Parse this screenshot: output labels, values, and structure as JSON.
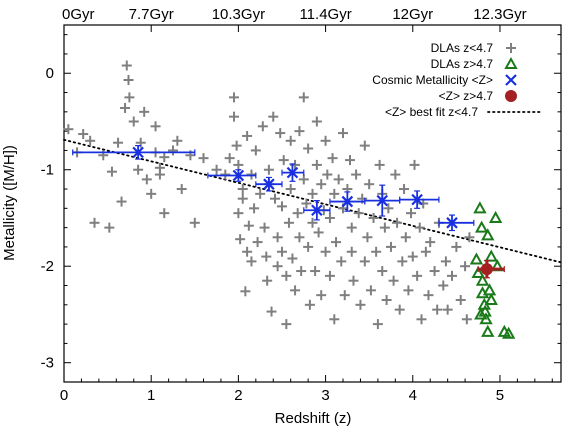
{
  "chart_data": {
    "type": "scatter",
    "title": "",
    "xlabel": "Redshift (z)",
    "ylabel": "Metallicity ([M/H])",
    "xlim": [
      0,
      5.7
    ],
    "ylim": [
      -3.2,
      0.5
    ],
    "x_ticks": [
      0,
      1,
      2,
      3,
      4,
      5
    ],
    "y_ticks": [
      0,
      -1,
      -2,
      -3
    ],
    "top_axis": {
      "label_positions_z": [
        0.0,
        1.0,
        2.0,
        3.0,
        4.0,
        5.0
      ],
      "labels": [
        "0Gyr",
        "7.7Gyr",
        "10.3Gyr",
        "11.4Gyr",
        "12Gyr",
        "12.3Gyr"
      ]
    },
    "legend_position": "top-right",
    "series": [
      {
        "name": "DLAs z<4.7",
        "marker": "plus",
        "color": "#7f7f7f",
        "points": [
          [
            0.05,
            -0.58
          ],
          [
            0.15,
            -0.82
          ],
          [
            0.22,
            -0.63
          ],
          [
            0.3,
            -0.7
          ],
          [
            0.35,
            -1.55
          ],
          [
            0.45,
            -0.85
          ],
          [
            0.52,
            -1.6
          ],
          [
            0.55,
            -1.02
          ],
          [
            0.62,
            -0.72
          ],
          [
            0.66,
            -1.33
          ],
          [
            0.7,
            -0.36
          ],
          [
            0.72,
            0.08
          ],
          [
            0.74,
            -0.07
          ],
          [
            0.75,
            -0.25
          ],
          [
            0.8,
            -0.5
          ],
          [
            0.85,
            -1.0
          ],
          [
            0.88,
            -0.72
          ],
          [
            0.92,
            -0.4
          ],
          [
            0.95,
            -1.1
          ],
          [
            1.0,
            -1.25
          ],
          [
            1.05,
            -0.55
          ],
          [
            1.05,
            -0.82
          ],
          [
            1.1,
            -1.05
          ],
          [
            1.1,
            -0.98
          ],
          [
            1.15,
            -0.87
          ],
          [
            1.15,
            -1.45
          ],
          [
            1.25,
            -0.8
          ],
          [
            1.3,
            -0.7
          ],
          [
            1.35,
            -1.2
          ],
          [
            1.45,
            -0.85
          ],
          [
            1.5,
            -1.55
          ],
          [
            1.6,
            -0.88
          ],
          [
            1.75,
            -1.0
          ],
          [
            1.85,
            -1.05
          ],
          [
            1.9,
            -0.88
          ],
          [
            1.95,
            -0.25
          ],
          [
            1.95,
            -0.45
          ],
          [
            1.98,
            -0.75
          ],
          [
            2.0,
            -0.95
          ],
          [
            2.0,
            -1.45
          ],
          [
            2.02,
            -1.72
          ],
          [
            2.05,
            -1.2
          ],
          [
            2.05,
            -1.3
          ],
          [
            2.08,
            -2.26
          ],
          [
            2.1,
            -0.65
          ],
          [
            2.1,
            -1.85
          ],
          [
            2.12,
            -1.58
          ],
          [
            2.15,
            -1.05
          ],
          [
            2.15,
            -1.95
          ],
          [
            2.18,
            -1.4
          ],
          [
            2.2,
            -0.8
          ],
          [
            2.22,
            -1.75
          ],
          [
            2.25,
            -1.25
          ],
          [
            2.28,
            -0.55
          ],
          [
            2.3,
            -1.6
          ],
          [
            2.32,
            -1.9
          ],
          [
            2.33,
            -2.15
          ],
          [
            2.35,
            -1.0
          ],
          [
            2.35,
            -1.15
          ],
          [
            2.38,
            -2.47
          ],
          [
            2.4,
            -0.45
          ],
          [
            2.42,
            -1.3
          ],
          [
            2.45,
            -1.7
          ],
          [
            2.45,
            -2.0
          ],
          [
            2.48,
            -0.62
          ],
          [
            2.5,
            -1.38
          ],
          [
            2.5,
            -1.85
          ],
          [
            2.52,
            -0.9
          ],
          [
            2.55,
            -2.1
          ],
          [
            2.55,
            -2.6
          ],
          [
            2.58,
            -1.55
          ],
          [
            2.6,
            -0.7
          ],
          [
            2.6,
            -1.2
          ],
          [
            2.62,
            -1.92
          ],
          [
            2.65,
            -0.95
          ],
          [
            2.65,
            -2.25
          ],
          [
            2.68,
            -1.45
          ],
          [
            2.7,
            -0.6
          ],
          [
            2.7,
            -1.7
          ],
          [
            2.72,
            -2.05
          ],
          [
            2.75,
            -1.1
          ],
          [
            2.75,
            -0.25
          ],
          [
            2.78,
            -1.35
          ],
          [
            2.8,
            -1.8
          ],
          [
            2.8,
            -0.78
          ],
          [
            2.82,
            -2.4
          ],
          [
            2.85,
            -1.25
          ],
          [
            2.85,
            -1.55
          ],
          [
            2.88,
            -2.05
          ],
          [
            2.9,
            -0.95
          ],
          [
            2.9,
            -0.5
          ],
          [
            2.92,
            -1.65
          ],
          [
            2.95,
            -1.15
          ],
          [
            2.95,
            -2.3
          ],
          [
            2.98,
            -1.42
          ],
          [
            3.0,
            -0.7
          ],
          [
            3.0,
            -1.85
          ],
          [
            3.02,
            -1.05
          ],
          [
            3.05,
            -2.1
          ],
          [
            3.05,
            -1.5
          ],
          [
            3.08,
            -0.88
          ],
          [
            3.1,
            -1.25
          ],
          [
            3.1,
            -2.55
          ],
          [
            3.12,
            -1.75
          ],
          [
            3.15,
            -1.1
          ],
          [
            3.18,
            -1.95
          ],
          [
            3.2,
            -0.62
          ],
          [
            3.2,
            -1.4
          ],
          [
            3.22,
            -2.3
          ],
          [
            3.25,
            -1.2
          ],
          [
            3.28,
            -0.9
          ],
          [
            3.3,
            -1.6
          ],
          [
            3.3,
            -1.85
          ],
          [
            3.32,
            -2.15
          ],
          [
            3.35,
            -1.05
          ],
          [
            3.38,
            -1.45
          ],
          [
            3.4,
            -2.4
          ],
          [
            3.42,
            -1.3
          ],
          [
            3.45,
            -0.75
          ],
          [
            3.45,
            -1.95
          ],
          [
            3.48,
            -1.7
          ],
          [
            3.5,
            -1.15
          ],
          [
            3.52,
            -2.25
          ],
          [
            3.55,
            -1.5
          ],
          [
            3.58,
            -1.85
          ],
          [
            3.6,
            -2.6
          ],
          [
            3.62,
            -0.95
          ],
          [
            3.65,
            -1.25
          ],
          [
            3.65,
            -2.05
          ],
          [
            3.68,
            -1.6
          ],
          [
            3.7,
            -2.35
          ],
          [
            3.72,
            -1.4
          ],
          [
            3.75,
            -1.8
          ],
          [
            3.78,
            -2.15
          ],
          [
            3.8,
            -1.05
          ],
          [
            3.82,
            -1.55
          ],
          [
            3.85,
            -2.45
          ],
          [
            3.88,
            -1.95
          ],
          [
            3.9,
            -1.2
          ],
          [
            3.92,
            -1.7
          ],
          [
            3.95,
            -2.25
          ],
          [
            3.98,
            -1.45
          ],
          [
            4.0,
            -1.9
          ],
          [
            4.02,
            -0.95
          ],
          [
            4.05,
            -2.1
          ],
          [
            4.08,
            -1.6
          ],
          [
            4.1,
            -2.55
          ],
          [
            4.12,
            -1.35
          ],
          [
            4.15,
            -1.85
          ],
          [
            4.18,
            -2.3
          ],
          [
            4.2,
            -1.75
          ],
          [
            4.25,
            -2.05
          ],
          [
            4.28,
            -2.45
          ],
          [
            4.3,
            -1.55
          ],
          [
            4.35,
            -2.2
          ],
          [
            4.38,
            -1.95
          ],
          [
            4.4,
            -2.45
          ],
          [
            4.45,
            -2.1
          ],
          [
            4.5,
            -1.8
          ],
          [
            4.55,
            -2.35
          ],
          [
            4.6,
            -2.0
          ],
          [
            4.62,
            -2.55
          ],
          [
            4.65,
            -1.7
          ]
        ]
      },
      {
        "name": "DLAs z>4.7",
        "marker": "triangle-open",
        "color": "#1a7a1a",
        "points": [
          [
            4.73,
            -1.93
          ],
          [
            4.75,
            -2.07
          ],
          [
            4.77,
            -1.4
          ],
          [
            4.79,
            -1.6
          ],
          [
            4.8,
            -2.15
          ],
          [
            4.8,
            -2.28
          ],
          [
            4.82,
            -2.4
          ],
          [
            4.83,
            -2.47
          ],
          [
            4.84,
            -2.55
          ],
          [
            4.86,
            -1.68
          ],
          [
            4.86,
            -2.68
          ],
          [
            4.88,
            -2.25
          ],
          [
            4.9,
            -2.35
          ],
          [
            4.95,
            -1.5
          ],
          [
            4.97,
            -2.0
          ],
          [
            5.05,
            -2.68
          ],
          [
            5.1,
            -2.7
          ],
          [
            4.78,
            -2.5
          ],
          [
            4.9,
            -1.9
          ]
        ]
      }
    ],
    "cosmic_metallicity": {
      "name": "Cosmic Metallicity <Z>",
      "marker": "x",
      "color": "#1830e0",
      "points": [
        {
          "x": 0.85,
          "y": -0.82,
          "xerr": [
            0.1,
            1.5
          ],
          "yerr": 0.07
        },
        {
          "x": 2.0,
          "y": -1.06,
          "xerr": [
            1.65,
            2.2
          ],
          "yerr": 0.06
        },
        {
          "x": 2.35,
          "y": -1.15,
          "xerr": [
            2.2,
            2.5
          ],
          "yerr": 0.07
        },
        {
          "x": 2.62,
          "y": -1.03,
          "xerr": [
            2.5,
            2.75
          ],
          "yerr": 0.09
        },
        {
          "x": 2.9,
          "y": -1.42,
          "xerr": [
            2.75,
            3.05
          ],
          "yerr": 0.1
        },
        {
          "x": 3.25,
          "y": -1.33,
          "xerr": [
            3.05,
            3.45
          ],
          "yerr": 0.1
        },
        {
          "x": 3.65,
          "y": -1.32,
          "xerr": [
            3.45,
            3.85
          ],
          "yerr": 0.16
        },
        {
          "x": 4.05,
          "y": -1.31,
          "xerr": [
            3.85,
            4.3
          ],
          "yerr": 0.09
        },
        {
          "x": 4.45,
          "y": -1.55,
          "xerr": [
            4.3,
            4.7
          ],
          "yerr": 0.08
        }
      ]
    },
    "high_z_mean": {
      "name": "<Z> z>4.7",
      "marker": "circle-filled",
      "color": "#a52020",
      "points": [
        {
          "x": 4.85,
          "y": -2.03,
          "xerr": [
            4.75,
            5.05
          ],
          "yerr": 0.09
        }
      ]
    },
    "best_fit": {
      "name": "<Z> best fit z<4.7",
      "style": "dotted",
      "color": "#000000",
      "line": [
        [
          0.0,
          -0.69
        ],
        [
          5.7,
          -1.96
        ]
      ]
    }
  }
}
